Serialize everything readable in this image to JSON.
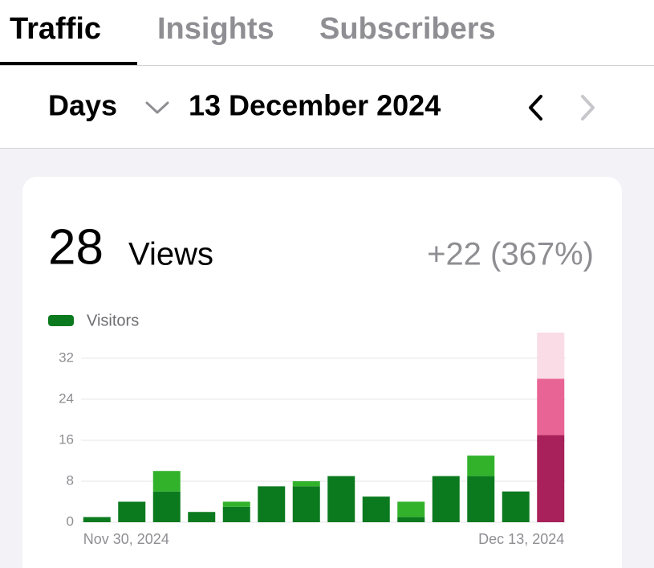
{
  "tabs": [
    "Traffic",
    "Insights",
    "Subscribers"
  ],
  "period": "Days",
  "date": "13 December 2024",
  "summary": {
    "value": "28",
    "label": "Views",
    "change": "+22 (367%)"
  },
  "chart_data": {
    "type": "stacked-bar",
    "categories": [
      "Nov 30, 2024",
      null,
      null,
      null,
      null,
      null,
      null,
      null,
      null,
      null,
      null,
      null,
      null,
      "Dec 13, 2024"
    ],
    "series": [
      {
        "name": "Visitors",
        "color": "#0b7a1f",
        "values": [
          1,
          4,
          6,
          2,
          3,
          7,
          7,
          9,
          5,
          1,
          9,
          9,
          6,
          17
        ]
      },
      {
        "color": "#32b22b",
        "values": [
          0,
          0,
          4,
          0,
          1,
          0,
          1,
          0,
          0,
          3,
          0,
          4,
          0,
          11
        ]
      }
    ],
    "highlight": {
      "index": 13,
      "colors": [
        "#a8215a",
        "#e86494",
        "#f9dce6"
      ]
    },
    "ylim": [
      0,
      37
    ],
    "yticks": [
      0,
      8,
      16,
      24,
      32
    ],
    "grid": true
  }
}
